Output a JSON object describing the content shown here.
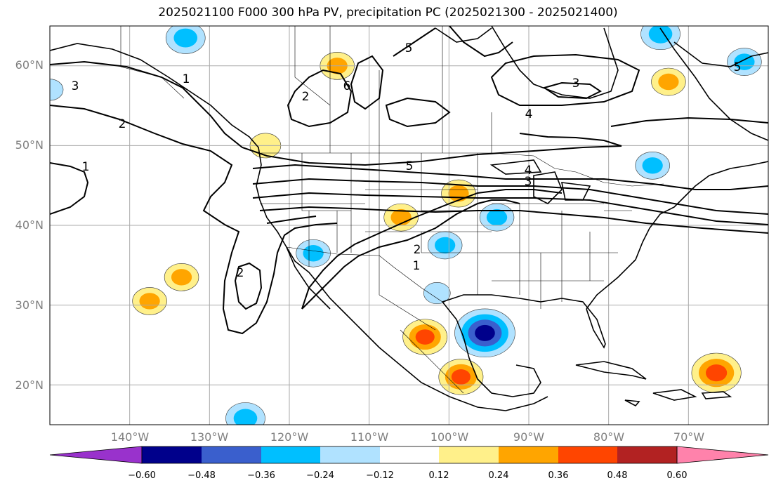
{
  "title": "2025021100 F000 300 hPa PV, precipitation PC (2025021300 - 2025021400)",
  "lat_labels": [
    "60°N",
    "50°N",
    "40°N",
    "30°N",
    "20°N"
  ],
  "lon_labels": [
    "140°W",
    "130°W",
    "120°W",
    "110°W",
    "100°W",
    "90°W",
    "80°W",
    "70°W"
  ],
  "colorbar": {
    "ticks": [
      "−0.60",
      "−0.48",
      "−0.36",
      "−0.24",
      "−0.12",
      "0.12",
      "0.24",
      "0.36",
      "0.48",
      "0.60"
    ],
    "colors": [
      "#9932cc",
      "#00008b",
      "#3a5fcd",
      "#00bfff",
      "#b0e2ff",
      "#ffffff",
      "#fff08a",
      "#ffa500",
      "#ff4500",
      "#b22222",
      "#ff82ab"
    ]
  },
  "contour_labels": [
    "3",
    "1",
    "2",
    "2",
    "1",
    "5",
    "6",
    "5",
    "4",
    "3",
    "5",
    "4",
    "3",
    "2",
    "1",
    "2"
  ],
  "map": {
    "lon_range": [
      -150,
      -60
    ],
    "lat_range": [
      15,
      65
    ],
    "graticule_lons": [
      -140,
      -130,
      -120,
      -110,
      -100,
      -90,
      -80,
      -70
    ],
    "graticule_lats": [
      60,
      50,
      40,
      30,
      20
    ],
    "precip_anomaly_blobs": [
      {
        "lon": -95.5,
        "lat": 26.5,
        "value": -0.55
      },
      {
        "lon": -66.5,
        "lat": 21.5,
        "value": 0.42
      },
      {
        "lon": -103.0,
        "lat": 26.0,
        "value": 0.36
      },
      {
        "lon": -98.5,
        "lat": 21.0,
        "value": 0.36
      },
      {
        "lon": -133.0,
        "lat": 63.5,
        "value": -0.3
      },
      {
        "lon": -73.5,
        "lat": 64.0,
        "value": -0.3
      },
      {
        "lon": -63.0,
        "lat": 60.5,
        "value": -0.24
      },
      {
        "lon": -114.0,
        "lat": 60.0,
        "value": 0.24
      },
      {
        "lon": -72.5,
        "lat": 58.0,
        "value": 0.24
      },
      {
        "lon": -125.5,
        "lat": 15.8,
        "value": -0.3
      },
      {
        "lon": -98.8,
        "lat": 44.0,
        "value": 0.24
      },
      {
        "lon": -106.0,
        "lat": 41.0,
        "value": 0.24
      },
      {
        "lon": -133.5,
        "lat": 33.5,
        "value": 0.24
      },
      {
        "lon": -137.5,
        "lat": 30.5,
        "value": 0.24
      },
      {
        "lon": -74.5,
        "lat": 47.5,
        "value": -0.24
      },
      {
        "lon": -94.0,
        "lat": 41.0,
        "value": -0.24
      },
      {
        "lon": -100.5,
        "lat": 37.5,
        "value": -0.24
      },
      {
        "lon": -117.0,
        "lat": 36.5,
        "value": -0.24
      },
      {
        "lon": -101.5,
        "lat": 31.5,
        "value": -0.15
      },
      {
        "lon": -123.0,
        "lat": 50.0,
        "value": 0.2
      },
      {
        "lon": -150.0,
        "lat": 57.0,
        "value": -0.15
      }
    ]
  }
}
